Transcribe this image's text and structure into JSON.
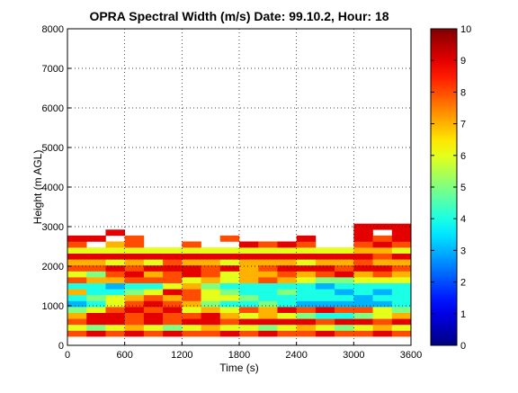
{
  "chart_data": {
    "type": "heatmap",
    "title": "OPRA Spectral Width (m/s)  Date: 99.10.2, Hour: 18",
    "xlabel": "Time (s)",
    "ylabel": "Height (m AGL)",
    "xlim": [
      0,
      3600
    ],
    "ylim": [
      0,
      8000
    ],
    "x_ticks": [
      "0",
      "600",
      "1200",
      "1800",
      "2400",
      "3000",
      "3600"
    ],
    "y_ticks": [
      "0",
      "1000",
      "2000",
      "3000",
      "4000",
      "5000",
      "6000",
      "7000",
      "8000"
    ],
    "grid": true,
    "colorbar": {
      "range": [
        0,
        10
      ],
      "ticks": [
        "0",
        "1",
        "2",
        "3",
        "4",
        "5",
        "6",
        "7",
        "8",
        "9",
        "10"
      ],
      "colormap": "jet"
    },
    "height_bins_m": [
      300,
      450,
      600,
      750,
      900,
      1050,
      1200,
      1350,
      1500,
      1650,
      1800,
      1950,
      2100,
      2250,
      2400,
      2550,
      2700,
      2850,
      3000
    ],
    "time_bins_s": [
      0,
      200,
      400,
      600,
      800,
      1000,
      1200,
      1400,
      1600,
      1800,
      2000,
      2200,
      2400,
      2600,
      2800,
      3000,
      3200,
      3400
    ],
    "layers": [
      {
        "height_m": 300,
        "values": [
          8,
          9,
          8,
          9,
          8,
          9,
          8,
          8,
          9,
          8,
          9,
          8,
          8,
          9,
          8,
          8,
          9,
          8
        ]
      },
      {
        "height_m": 450,
        "values": [
          6,
          5,
          6,
          7,
          6,
          5,
          6,
          7,
          6,
          6,
          5,
          6,
          7,
          6,
          5,
          6,
          7,
          6
        ]
      },
      {
        "height_m": 600,
        "values": [
          8,
          9,
          9,
          8,
          9,
          8,
          9,
          9,
          8,
          9,
          9,
          9,
          9,
          8,
          9,
          9,
          8,
          9
        ]
      },
      {
        "height_m": 750,
        "values": [
          7,
          9,
          9,
          8,
          9,
          8,
          8,
          9,
          7,
          6,
          7,
          6,
          5,
          4,
          4,
          5,
          6,
          7
        ]
      },
      {
        "height_m": 900,
        "values": [
          5,
          6,
          8,
          9,
          8,
          9,
          6,
          7,
          6,
          8,
          7,
          9,
          8,
          9,
          8,
          8,
          6,
          5
        ]
      },
      {
        "height_m": 1050,
        "values": [
          3,
          4,
          6,
          8,
          9,
          8,
          7,
          5,
          4,
          4,
          5,
          4,
          3,
          3,
          3,
          3,
          3,
          4
        ]
      },
      {
        "height_m": 1200,
        "values": [
          4,
          5,
          6,
          7,
          8,
          7,
          8,
          6,
          6,
          5,
          4,
          4,
          4,
          4,
          4,
          3,
          4,
          4
        ]
      },
      {
        "height_m": 1350,
        "values": [
          7,
          4,
          4,
          5,
          6,
          9,
          8,
          6,
          5,
          4,
          4,
          5,
          4,
          4,
          3,
          4,
          3,
          4
        ]
      },
      {
        "height_m": 1500,
        "values": [
          4,
          4,
          3,
          4,
          4,
          6,
          7,
          5,
          4,
          4,
          4,
          4,
          4,
          3,
          4,
          4,
          4,
          4
        ]
      },
      {
        "height_m": 1650,
        "values": [
          8,
          7,
          7,
          8,
          8,
          8,
          6,
          7,
          6,
          7,
          8,
          7,
          6,
          5,
          5,
          6,
          6,
          6
        ]
      },
      {
        "height_m": 1800,
        "values": [
          6,
          5,
          8,
          9,
          7,
          8,
          9,
          8,
          6,
          7,
          7,
          8,
          7,
          8,
          9,
          7,
          8,
          7
        ]
      },
      {
        "height_m": 1950,
        "values": [
          8,
          8,
          9,
          8,
          9,
          9,
          9,
          8,
          9,
          7,
          8,
          9,
          9,
          9,
          8,
          9,
          9,
          8
        ]
      },
      {
        "height_m": 2100,
        "values": [
          7,
          7,
          6,
          7,
          6,
          8,
          7,
          7,
          6,
          7,
          7,
          7,
          6,
          7,
          7,
          8,
          7,
          7
        ]
      },
      {
        "height_m": 2250,
        "values": [
          9,
          9,
          9,
          9,
          9,
          9,
          9,
          9,
          9,
          9,
          9,
          9,
          9,
          9,
          9,
          9,
          8,
          9
        ]
      },
      {
        "height_m": 2400,
        "values": [
          6,
          6,
          6,
          6,
          6,
          6,
          6,
          6,
          6,
          6,
          6,
          6,
          6,
          6,
          6,
          7,
          7,
          6
        ]
      },
      {
        "height_m": 2550,
        "values": [
          8,
          null,
          7,
          8,
          null,
          null,
          8,
          null,
          null,
          9,
          8,
          9,
          8,
          null,
          null,
          8,
          9,
          8
        ]
      },
      {
        "height_m": 2700,
        "values": [
          9,
          9,
          null,
          8,
          null,
          null,
          null,
          null,
          8,
          null,
          null,
          null,
          9,
          null,
          null,
          9,
          8,
          9
        ]
      },
      {
        "height_m": 2850,
        "values": [
          null,
          null,
          9,
          null,
          null,
          null,
          null,
          null,
          null,
          null,
          null,
          null,
          null,
          null,
          null,
          9,
          null,
          9
        ]
      },
      {
        "height_m": 3000,
        "values": [
          null,
          null,
          null,
          null,
          null,
          null,
          null,
          null,
          null,
          null,
          null,
          null,
          null,
          null,
          null,
          9,
          9,
          9
        ]
      }
    ]
  }
}
